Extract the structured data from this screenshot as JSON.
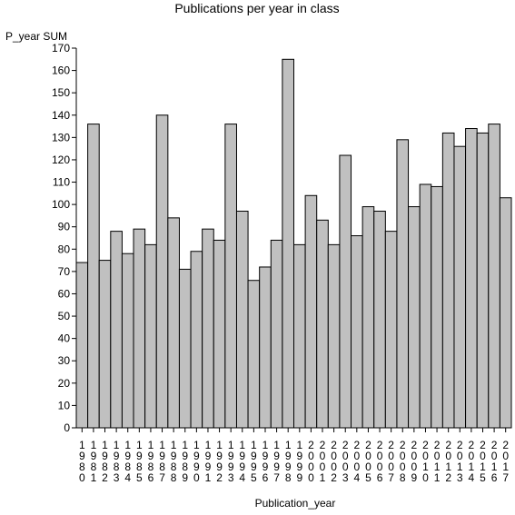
{
  "chart_data": {
    "type": "bar",
    "title": "Publications per year in class",
    "xlabel": "Publication_year",
    "ylabel": "P_year SUM",
    "ylim": [
      0,
      170
    ],
    "ytick_step": 10,
    "grid": false,
    "legend": "none",
    "colors": {
      "bar_fill": "#c0c0c0",
      "bar_stroke": "#000000",
      "axis": "#000000"
    },
    "categories": [
      "1980",
      "1981",
      "1982",
      "1983",
      "1984",
      "1985",
      "1986",
      "1987",
      "1988",
      "1989",
      "1990",
      "1991",
      "1992",
      "1993",
      "1994",
      "1995",
      "1996",
      "1997",
      "1998",
      "1999",
      "2000",
      "2001",
      "2002",
      "2003",
      "2004",
      "2005",
      "2006",
      "2007",
      "2008",
      "2009",
      "2010",
      "2011",
      "2012",
      "2013",
      "2014",
      "2015",
      "2016",
      "2017"
    ],
    "values": [
      74,
      136,
      75,
      88,
      78,
      89,
      82,
      140,
      94,
      71,
      79,
      89,
      84,
      136,
      97,
      66,
      72,
      84,
      165,
      82,
      104,
      93,
      82,
      122,
      86,
      99,
      97,
      88,
      129,
      99,
      109,
      108,
      132,
      126,
      134,
      132,
      136,
      103
    ]
  }
}
